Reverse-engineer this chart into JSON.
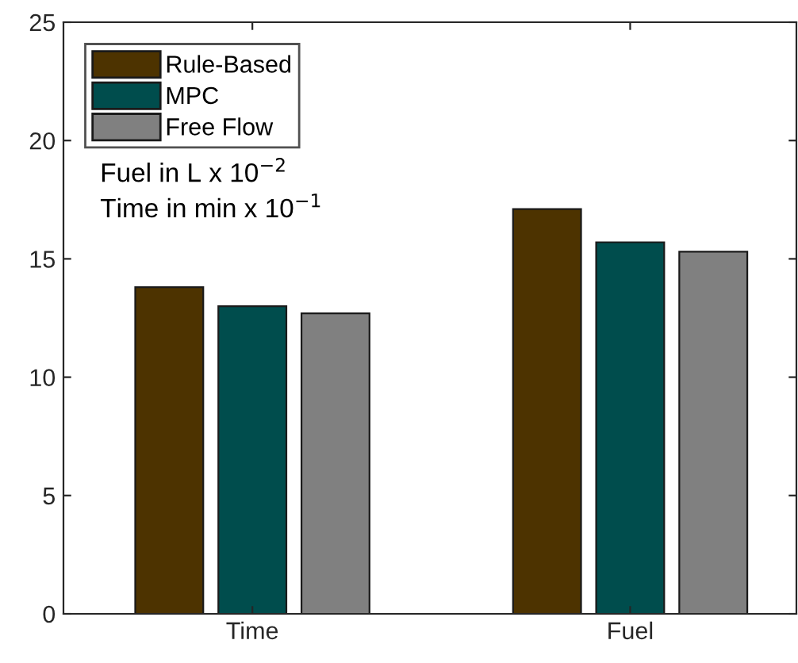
{
  "chart_data": {
    "type": "bar",
    "categories": [
      "Time",
      "Fuel"
    ],
    "series": [
      {
        "name": "Rule-Based",
        "color": "#4d3300",
        "values": [
          13.8,
          17.1
        ]
      },
      {
        "name": "MPC",
        "color": "#004d4d",
        "values": [
          13.0,
          15.7
        ]
      },
      {
        "name": "Free Flow",
        "color": "#808080",
        "values": [
          12.7,
          15.3
        ]
      }
    ],
    "ylim": [
      0,
      25
    ],
    "yticks": [
      0,
      5,
      10,
      15,
      20,
      25
    ],
    "grid": false,
    "legend": "top left",
    "annotations": [
      "Fuel in L x 10$^{−2}$",
      "Time in min x 10$^{−1}$"
    ]
  }
}
